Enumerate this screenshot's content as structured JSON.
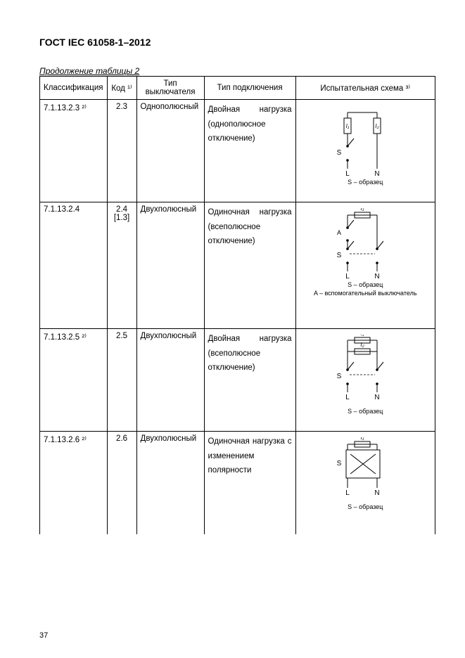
{
  "title": "ГОСТ IEC 61058-1–2012",
  "caption": "Продолжение таблицы 2",
  "page_number": "37",
  "headers": [
    "Классификация",
    "Код ¹⁾",
    "Тип выключателя",
    "Тип подключения",
    "Испытательная схема ³⁾"
  ],
  "rows": [
    {
      "classification": "7.1.13.2.3 ²⁾",
      "code": "2.3",
      "switch_type": "Однополюсный",
      "connection_html": "Двойная нагрузка (однополюсное отключение)",
      "diagram": {
        "circuit": "2.3",
        "captions": [
          "S – образец"
        ]
      }
    },
    {
      "classification": "7.1.13.2.4",
      "code": "2.4 [1.3]",
      "switch_type": "Двухполюсный",
      "connection_html": "Одиночная нагрузка (всеполюсное отключение)",
      "diagram": {
        "circuit": "2.4",
        "captions": [
          "S – образец",
          "A – вспомогательный выключатель"
        ]
      }
    },
    {
      "classification": "7.1.13.2.5 ²⁾",
      "code": "2.5",
      "switch_type": "Двухполюсный",
      "connection_html": "Двойная нагрузка (всеполюсное отключение)",
      "diagram": {
        "circuit": "2.5",
        "captions": [
          "S – образец"
        ]
      }
    },
    {
      "classification": "7.1.13.2.6 ²⁾",
      "code": "2.6",
      "switch_type": "Двухполюсный",
      "connection_html": "Одиночная нагрузка с изменением полярности",
      "diagram": {
        "circuit": "2.6",
        "captions": [
          "S – образец"
        ]
      }
    }
  ]
}
